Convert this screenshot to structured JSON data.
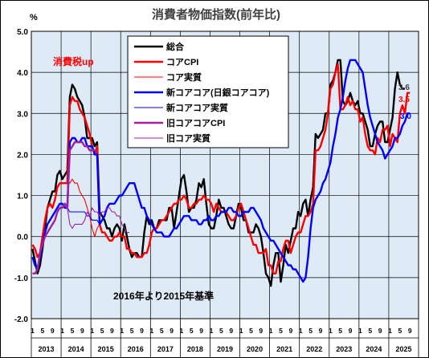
{
  "chart_data": {
    "type": "line",
    "title": "消費者物価指数(前年比)",
    "ylabel": "%",
    "ylim": [
      -2.0,
      5.0
    ],
    "yticks": [
      "5.0",
      "4.0",
      "3.0",
      "2.0",
      "1.0",
      "0.0",
      "-1.0",
      "-2.0"
    ],
    "month_ticks": [
      "1",
      "5",
      "9"
    ],
    "year_labels": [
      "2013",
      "2014",
      "2015",
      "2016",
      "2017",
      "2018",
      "2019",
      "2020",
      "2021",
      "2022",
      "2023",
      "2024",
      "2025"
    ],
    "grid": true,
    "legend_position": "top-center",
    "annotations": {
      "tax_hike": "消費税up",
      "base_change": "2016年より2015年基準",
      "end_sogo": "3.6",
      "end_core": "3.5",
      "end_newcore": "3.0"
    },
    "series": [
      {
        "name": "総合",
        "color": "#000000",
        "width": 2.4,
        "start": "2013-01",
        "values": [
          -0.3,
          -0.6,
          -0.9,
          -0.7,
          -0.3,
          0.2,
          0.7,
          0.9,
          1.1,
          1.1,
          1.5,
          1.6,
          1.4,
          1.5,
          1.6,
          3.4,
          3.7,
          3.6,
          3.4,
          3.3,
          3.2,
          2.9,
          2.4,
          2.4,
          2.4,
          2.2,
          2.3,
          0.6,
          0.5,
          0.4,
          0.2,
          0.2,
          0.0,
          0.2,
          0.3,
          0.2,
          -0.1,
          0.3,
          0.0,
          -0.3,
          -0.5,
          -0.4,
          -0.4,
          -0.5,
          -0.5,
          0.1,
          0.5,
          0.3,
          0.4,
          0.2,
          0.2,
          0.4,
          0.4,
          0.4,
          0.4,
          0.7,
          0.7,
          0.2,
          0.6,
          1.0,
          1.4,
          1.5,
          1.1,
          0.6,
          0.7,
          0.7,
          0.9,
          1.3,
          1.2,
          1.4,
          0.8,
          0.3,
          0.2,
          0.2,
          0.5,
          0.9,
          0.7,
          0.7,
          0.5,
          0.3,
          0.2,
          0.2,
          0.5,
          0.8,
          0.7,
          0.4,
          0.4,
          0.1,
          0.1,
          0.1,
          0.3,
          0.2,
          0.0,
          -0.4,
          -0.9,
          -1.0,
          -1.2,
          -0.7,
          -0.4,
          -0.4,
          -1.1,
          -0.7,
          -0.2,
          -0.4,
          -0.1,
          0.2,
          0.2,
          0.6,
          0.5,
          0.8,
          0.9,
          0.5,
          0.9,
          1.2,
          2.5,
          2.4,
          2.5,
          2.6,
          3.0,
          3.0,
          3.7,
          3.8,
          4.0,
          4.3,
          4.3,
          3.3,
          3.2,
          3.3,
          3.5,
          3.3,
          3.2,
          3.3,
          3.0,
          3.0,
          2.8,
          2.6,
          2.2,
          2.2,
          2.5,
          2.7,
          2.8,
          2.8,
          2.3,
          2.3,
          2.6,
          2.9,
          3.6,
          4.0,
          3.7,
          3.6,
          3.6
        ]
      },
      {
        "name": "コアCPI",
        "color": "#ff0000",
        "width": 2.4,
        "start": "2013-01",
        "values": [
          -0.2,
          -0.3,
          -0.5,
          -0.4,
          0.0,
          0.4,
          0.7,
          0.8,
          0.7,
          0.9,
          1.2,
          1.3,
          1.3,
          1.3,
          1.3,
          3.2,
          3.4,
          3.3,
          3.3,
          3.1,
          3.0,
          2.9,
          2.7,
          2.5,
          2.2,
          2.0,
          2.2,
          0.3,
          0.1,
          0.1,
          0.0,
          -0.1,
          -0.1,
          0.0,
          0.0,
          0.1,
          0.0,
          0.0,
          -0.3,
          -0.3,
          -0.4,
          -0.4,
          -0.5,
          -0.5,
          -0.5,
          -0.4,
          -0.4,
          -0.2,
          0.1,
          0.2,
          0.2,
          0.3,
          0.4,
          0.4,
          0.5,
          0.6,
          0.7,
          0.8,
          0.8,
          0.9,
          0.9,
          1.0,
          0.9,
          0.7,
          0.7,
          0.8,
          0.8,
          0.9,
          0.9,
          1.0,
          0.9,
          0.9,
          0.8,
          0.6,
          0.8,
          0.7,
          0.6,
          0.6,
          0.6,
          0.5,
          0.4,
          0.4,
          0.5,
          0.7,
          0.8,
          0.6,
          0.4,
          0.2,
          0.0,
          -0.2,
          -0.2,
          -0.4,
          -0.4,
          -0.4,
          -0.3,
          -0.7,
          -0.7,
          -0.9,
          -0.9,
          -0.6,
          -0.6,
          -0.3,
          -0.1,
          -0.1,
          -0.4,
          -0.2,
          0.0,
          0.1,
          0.1,
          0.3,
          0.5,
          0.5,
          0.6,
          0.8,
          2.1,
          2.1,
          2.2,
          2.4,
          2.6,
          3.0,
          3.6,
          3.7,
          4.0,
          4.2,
          3.1,
          3.1,
          3.2,
          3.4,
          3.2,
          3.3,
          3.1,
          3.1,
          2.8,
          2.9,
          2.5,
          2.2,
          2.1,
          2.1,
          2.0,
          2.4,
          2.3,
          2.6,
          2.6,
          2.7,
          2.2,
          2.5,
          2.4,
          2.3,
          3.0,
          3.2,
          3.0,
          3.5,
          3.5
        ]
      },
      {
        "name": "コア実質",
        "color": "#ff0000",
        "width": 1.1,
        "start": "2013-01",
        "values": [
          -0.3,
          -0.3,
          -0.5,
          -0.4,
          0.0,
          0.4,
          0.7,
          0.8,
          0.7,
          0.9,
          1.2,
          1.3,
          1.3,
          1.3,
          1.3,
          1.3,
          1.4,
          1.3,
          1.3,
          1.1,
          1.0,
          0.9,
          0.7,
          0.5,
          0.2,
          0.0,
          0.2,
          0.3,
          0.1,
          0.1,
          0.0,
          -0.1,
          -0.1,
          0.0,
          0.0,
          0.1,
          0.0,
          0.0,
          -0.3,
          -0.3,
          -0.4,
          -0.4,
          -0.5,
          -0.5,
          -0.5,
          -0.4,
          -0.4,
          -0.2,
          0.1,
          0.2,
          0.2,
          0.3,
          0.4,
          0.4,
          0.5,
          0.6,
          0.7,
          0.8,
          0.8,
          0.9,
          0.9,
          1.0,
          0.9,
          0.7,
          0.7,
          0.8,
          0.8,
          0.9,
          0.9,
          1.0,
          0.9,
          0.9,
          0.8,
          0.6,
          0.8,
          0.7,
          0.6,
          0.6,
          0.6,
          0.5,
          0.4,
          0.4,
          0.5,
          0.7,
          0.8,
          0.6,
          0.4,
          0.2,
          0.0,
          -0.2,
          -0.2,
          -0.4,
          -0.4,
          -0.4,
          -0.3,
          -0.7,
          -0.7,
          -0.9,
          -0.9,
          -0.6,
          -0.6,
          -0.3,
          -0.1,
          -0.1,
          -0.4,
          -0.2,
          0.0,
          0.1,
          0.1,
          0.3,
          0.5,
          0.5,
          0.6,
          0.8,
          2.1,
          2.1,
          2.2,
          2.4,
          2.6,
          3.0,
          3.6,
          3.7,
          4.0,
          4.2,
          3.1,
          3.1,
          3.2,
          3.4,
          3.2,
          3.3,
          3.1,
          3.1,
          2.8,
          2.9,
          2.5,
          2.2,
          2.1,
          2.1,
          2.0,
          2.4,
          2.3,
          2.6,
          2.6,
          2.7,
          2.2,
          2.5,
          2.4,
          2.3,
          3.0,
          3.2,
          3.0,
          3.5,
          3.5
        ]
      },
      {
        "name": "新コアコア(日銀コアコア)",
        "color": "#0000ff",
        "width": 2.4,
        "start": "2013-01",
        "values": [
          -0.5,
          -0.7,
          -0.8,
          -0.5,
          -0.2,
          0.1,
          0.3,
          0.4,
          0.5,
          0.6,
          0.7,
          0.8,
          0.8,
          0.7,
          0.7,
          2.3,
          2.4,
          2.4,
          2.3,
          2.3,
          2.4,
          2.4,
          2.2,
          2.2,
          2.2,
          2.0,
          2.0,
          0.3,
          0.4,
          0.5,
          0.7,
          0.8,
          0.8,
          0.8,
          0.9,
          1.0,
          1.0,
          1.1,
          1.2,
          1.3,
          1.3,
          1.3,
          1.1,
          0.9,
          0.7,
          0.7,
          0.5,
          0.4,
          0.3,
          0.2,
          0.1,
          0.1,
          0.1,
          0.0,
          0.0,
          0.0,
          0.1,
          0.2,
          0.2,
          0.3,
          0.4,
          0.5,
          0.5,
          0.5,
          0.4,
          0.4,
          0.4,
          0.3,
          0.3,
          0.4,
          0.4,
          0.5,
          0.4,
          0.4,
          0.5,
          0.5,
          0.6,
          0.6,
          0.6,
          0.7,
          0.7,
          0.6,
          0.6,
          0.5,
          0.5,
          0.6,
          0.6,
          0.6,
          0.7,
          0.7,
          0.6,
          0.5,
          0.4,
          0.2,
          0.1,
          0.0,
          -0.1,
          -0.1,
          -0.2,
          -0.3,
          -0.4,
          -0.5,
          -0.6,
          -0.7,
          -0.7,
          -0.8,
          -0.8,
          -0.9,
          -1.0,
          -1.1,
          -1.0,
          -0.5,
          0.2,
          0.7,
          0.9,
          1.0,
          1.1,
          1.3,
          1.4,
          1.6,
          1.8,
          2.2,
          2.5,
          2.9,
          3.1,
          3.4,
          3.8,
          4.1,
          4.3,
          4.3,
          4.3,
          4.2,
          4.1,
          4.0,
          3.6,
          3.2,
          2.9,
          2.7,
          2.5,
          2.3,
          2.2,
          2.1,
          1.9,
          2.0,
          2.1,
          2.2,
          2.4,
          2.4,
          2.5,
          2.7,
          2.8,
          3.0,
          3.0
        ]
      },
      {
        "name": "新コアコア実質",
        "color": "#0000ff",
        "width": 1.1,
        "start": "2013-01",
        "values": [
          -0.5,
          -0.7,
          -0.8,
          -0.5,
          -0.2,
          0.1,
          0.3,
          0.4,
          0.5,
          0.6,
          0.7,
          0.8,
          0.8,
          0.7,
          0.7,
          0.6,
          0.6,
          0.6,
          0.6,
          0.6,
          0.6,
          0.6,
          0.5,
          0.5,
          0.4,
          0.4,
          0.4,
          0.3,
          0.4,
          0.5,
          0.7,
          0.8,
          0.8,
          0.8,
          0.9,
          1.0,
          1.0,
          1.1,
          1.2,
          1.3,
          1.3,
          1.3,
          1.1,
          0.9,
          0.7,
          0.7,
          0.5,
          0.4,
          0.3,
          0.2,
          0.1,
          0.1,
          0.1,
          0.0,
          0.0,
          0.0,
          0.1,
          0.2,
          0.2,
          0.3,
          0.4,
          0.5,
          0.5,
          0.5,
          0.4,
          0.4,
          0.4,
          0.3,
          0.3,
          0.4,
          0.4,
          0.5,
          0.4,
          0.4,
          0.5,
          0.5,
          0.6,
          0.6,
          0.6,
          0.7,
          0.7,
          0.6,
          0.6,
          0.5,
          0.5,
          0.6,
          0.6,
          0.6,
          0.7,
          0.7,
          0.6,
          0.5,
          0.4,
          0.2,
          0.1,
          0.0,
          -0.1,
          -0.1,
          -0.2,
          -0.3,
          -0.4,
          -0.5,
          -0.6,
          -0.7,
          -0.7,
          -0.8,
          -0.8,
          -0.9,
          -1.0,
          -1.1,
          -1.0,
          -0.5,
          0.2,
          0.7,
          0.9,
          1.0,
          1.1,
          1.3,
          1.4,
          1.6,
          1.8,
          2.2,
          2.5,
          2.9,
          3.1,
          3.4,
          3.8,
          4.1,
          4.3,
          4.3,
          4.3,
          4.2,
          4.1,
          4.0,
          3.6,
          3.2,
          2.9,
          2.7,
          2.5,
          2.3,
          2.2,
          2.1,
          1.9,
          2.0,
          2.1,
          2.2,
          2.4,
          2.4,
          2.5,
          2.7,
          2.8,
          3.0,
          3.0
        ]
      },
      {
        "name": "旧コアコアCPI",
        "color": "#a020a0",
        "width": 2.4,
        "start": "2013-01",
        "values": [
          -0.9,
          -0.9,
          -0.8,
          -0.4,
          -0.2,
          0.0,
          0.1,
          0.2,
          0.3,
          0.4,
          0.6,
          0.7,
          0.7,
          0.8,
          0.7,
          2.1,
          2.2,
          2.3,
          2.3,
          2.3,
          2.3,
          2.2,
          2.2,
          2.1,
          2.1,
          2.1,
          2.1
        ]
      },
      {
        "name": "旧コア実質",
        "color": "#a020a0",
        "width": 1.1,
        "start": "2013-01",
        "values": [
          -0.9,
          -0.9,
          -0.8,
          -0.4,
          -0.2,
          0.0,
          0.1,
          0.2,
          0.3,
          0.4,
          0.6,
          0.7,
          0.7,
          0.8,
          0.7,
          0.3,
          0.2,
          0.3,
          0.3,
          0.3,
          0.3,
          0.4,
          0.6,
          0.5,
          0.7,
          0.6,
          0.6,
          0.5,
          0.6,
          0.6,
          0.7,
          0.7,
          0.6,
          0.6,
          0.5,
          0.5,
          0.3,
          0.2,
          0.1,
          0.1
        ]
      }
    ]
  }
}
